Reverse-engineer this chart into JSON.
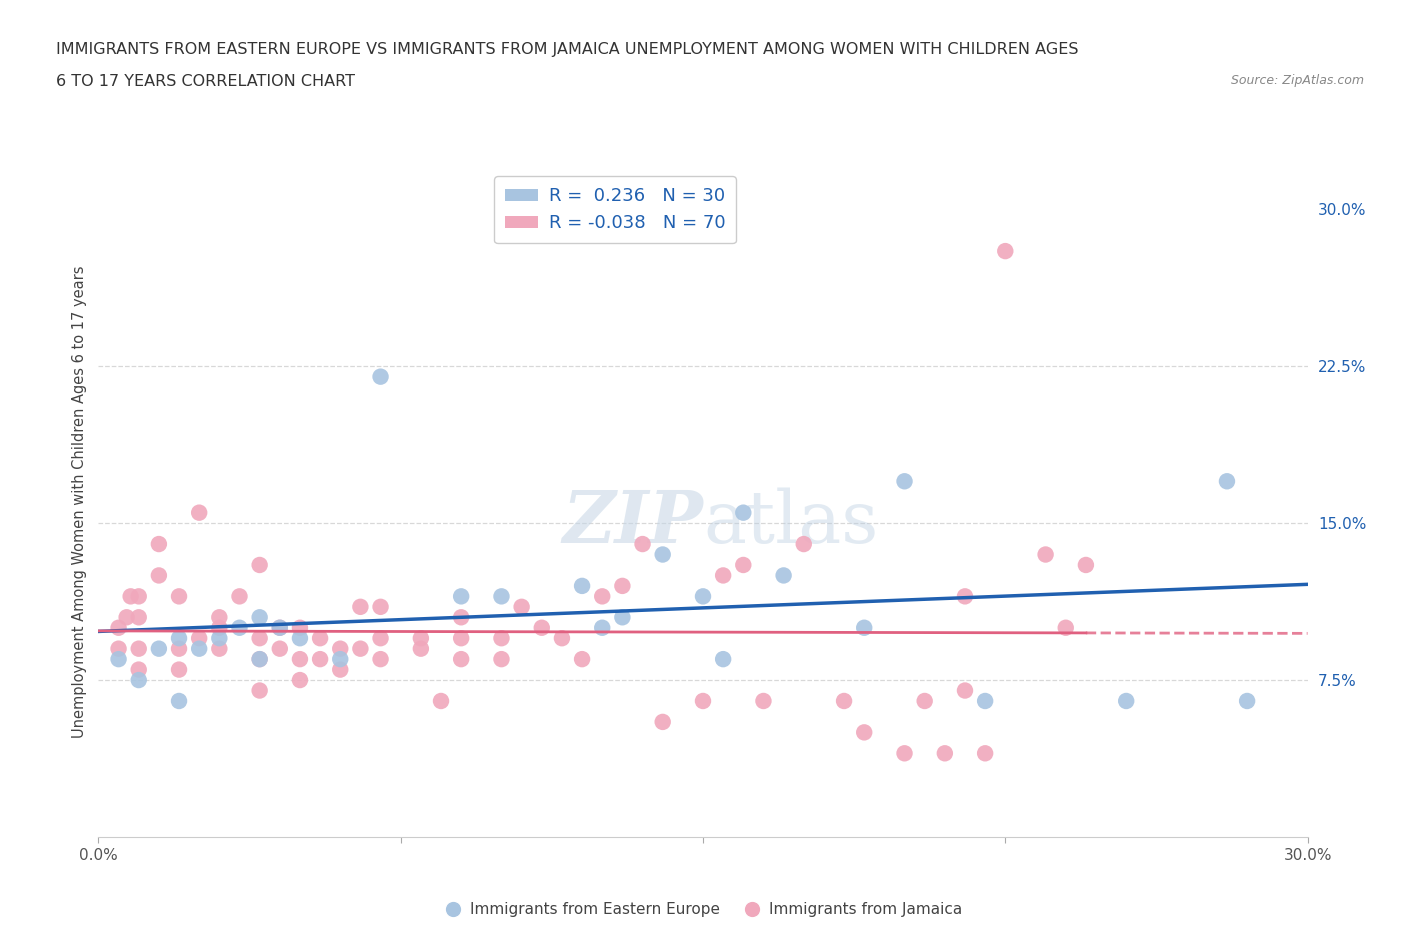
{
  "title_line1": "IMMIGRANTS FROM EASTERN EUROPE VS IMMIGRANTS FROM JAMAICA UNEMPLOYMENT AMONG WOMEN WITH CHILDREN AGES",
  "title_line2": "6 TO 17 YEARS CORRELATION CHART",
  "source": "Source: ZipAtlas.com",
  "ylabel": "Unemployment Among Women with Children Ages 6 to 17 years",
  "xlim": [
    0.0,
    0.3
  ],
  "ylim": [
    0.0,
    0.32
  ],
  "r_eastern": 0.236,
  "n_eastern": 30,
  "r_jamaica": -0.038,
  "n_jamaica": 70,
  "color_eastern": "#a8c4e0",
  "color_jamaica": "#f0a8bc",
  "line_color_eastern": "#2060b0",
  "line_color_jamaica": "#e06080",
  "background_color": "#ffffff",
  "grid_color": "#d8d8d8",
  "legend_label_eastern": "Immigrants from Eastern Europe",
  "legend_label_jamaica": "Immigrants from Jamaica",
  "eastern_x": [
    0.005,
    0.01,
    0.015,
    0.02,
    0.02,
    0.025,
    0.03,
    0.035,
    0.04,
    0.04,
    0.045,
    0.05,
    0.06,
    0.07,
    0.09,
    0.1,
    0.12,
    0.125,
    0.13,
    0.14,
    0.15,
    0.155,
    0.16,
    0.17,
    0.19,
    0.2,
    0.22,
    0.255,
    0.28,
    0.285
  ],
  "eastern_y": [
    0.085,
    0.075,
    0.09,
    0.065,
    0.095,
    0.09,
    0.095,
    0.1,
    0.085,
    0.105,
    0.1,
    0.095,
    0.085,
    0.22,
    0.115,
    0.115,
    0.12,
    0.1,
    0.105,
    0.135,
    0.115,
    0.085,
    0.155,
    0.125,
    0.1,
    0.17,
    0.065,
    0.065,
    0.17,
    0.065
  ],
  "jamaica_x": [
    0.005,
    0.005,
    0.007,
    0.008,
    0.01,
    0.01,
    0.01,
    0.01,
    0.015,
    0.015,
    0.02,
    0.02,
    0.02,
    0.025,
    0.025,
    0.03,
    0.03,
    0.03,
    0.035,
    0.04,
    0.04,
    0.04,
    0.04,
    0.045,
    0.045,
    0.05,
    0.05,
    0.05,
    0.055,
    0.055,
    0.06,
    0.06,
    0.065,
    0.065,
    0.07,
    0.07,
    0.07,
    0.08,
    0.08,
    0.085,
    0.09,
    0.09,
    0.09,
    0.1,
    0.1,
    0.105,
    0.11,
    0.115,
    0.12,
    0.125,
    0.13,
    0.135,
    0.14,
    0.15,
    0.155,
    0.16,
    0.165,
    0.175,
    0.185,
    0.19,
    0.2,
    0.205,
    0.21,
    0.215,
    0.215,
    0.22,
    0.225,
    0.235,
    0.24,
    0.245
  ],
  "jamaica_y": [
    0.09,
    0.1,
    0.105,
    0.115,
    0.08,
    0.09,
    0.105,
    0.115,
    0.125,
    0.14,
    0.08,
    0.09,
    0.115,
    0.095,
    0.155,
    0.09,
    0.1,
    0.105,
    0.115,
    0.07,
    0.085,
    0.095,
    0.13,
    0.09,
    0.1,
    0.075,
    0.085,
    0.1,
    0.085,
    0.095,
    0.08,
    0.09,
    0.09,
    0.11,
    0.085,
    0.095,
    0.11,
    0.09,
    0.095,
    0.065,
    0.085,
    0.095,
    0.105,
    0.085,
    0.095,
    0.11,
    0.1,
    0.095,
    0.085,
    0.115,
    0.12,
    0.14,
    0.055,
    0.065,
    0.125,
    0.13,
    0.065,
    0.14,
    0.065,
    0.05,
    0.04,
    0.065,
    0.04,
    0.07,
    0.115,
    0.04,
    0.28,
    0.135,
    0.1,
    0.13
  ]
}
